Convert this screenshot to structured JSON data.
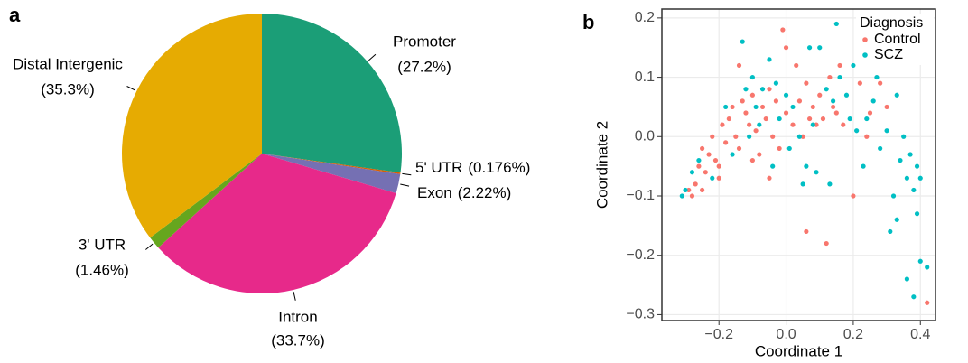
{
  "chart_data": [
    {
      "type": "pie",
      "label": "a",
      "categories": [
        "Promoter",
        "5' UTR",
        "Exon",
        "Intron",
        "3' UTR",
        "Distal Intergenic"
      ],
      "values": [
        27.2,
        0.176,
        2.22,
        33.7,
        1.46,
        35.3
      ],
      "value_labels": [
        "(27.2%)",
        "(0.176%)",
        "(2.22%)",
        "(33.7%)",
        "(1.46%)",
        "(35.3%)"
      ],
      "colors": [
        "#1B9E77",
        "#D95F02",
        "#7570B3",
        "#E7298A",
        "#66A61E",
        "#E6AB02"
      ]
    },
    {
      "type": "scatter",
      "label": "b",
      "x_label": "Coordinate 1",
      "y_label": "Coordinate 2",
      "legend_title": "Diagnosis",
      "legend": "top-right",
      "grid": true,
      "xlim": [
        -0.37,
        0.445
      ],
      "ylim": [
        -0.31,
        0.215
      ],
      "xticks": [
        {
          "value": -0.2,
          "label": "−0.2"
        },
        {
          "value": 0,
          "label": "0.0"
        },
        {
          "value": 0.2,
          "label": "0.2"
        },
        {
          "value": 0.4,
          "label": "0.4"
        }
      ],
      "yticks": [
        {
          "value": -0.3,
          "label": "−0.3"
        },
        {
          "value": -0.2,
          "label": "−0.2"
        },
        {
          "value": -0.1,
          "label": "−0.1"
        },
        {
          "value": 0,
          "label": "0.0"
        },
        {
          "value": 0.1,
          "label": "0.1"
        },
        {
          "value": 0.2,
          "label": "0.2"
        }
      ],
      "series": [
        {
          "name": "Control",
          "color": "#F8766D",
          "x": [
            -0.28,
            -0.29,
            -0.27,
            -0.25,
            -0.26,
            -0.24,
            -0.23,
            -0.25,
            -0.22,
            -0.21,
            -0.2,
            -0.19,
            -0.18,
            -0.17,
            -0.16,
            -0.15,
            -0.14,
            -0.13,
            -0.12,
            -0.11,
            -0.1,
            -0.09,
            -0.08,
            -0.07,
            -0.06,
            -0.05,
            -0.04,
            -0.03,
            -0.02,
            -0.01,
            0.0,
            0.02,
            0.03,
            0.04,
            0.05,
            0.06,
            0.07,
            0.08,
            0.09,
            0.1,
            0.11,
            0.12,
            0.13,
            0.14,
            0.15,
            0.16,
            0.17,
            0.2,
            0.22,
            0.24,
            0.25,
            0.28,
            0.3,
            0.42,
            0.06,
            -0.14,
            -0.1,
            -0.2,
            0.0,
            -0.05
          ],
          "y": [
            -0.1,
            -0.09,
            -0.08,
            -0.09,
            -0.05,
            -0.06,
            -0.03,
            -0.02,
            0.0,
            -0.04,
            -0.07,
            0.02,
            -0.01,
            0.03,
            0.05,
            0.0,
            -0.02,
            0.06,
            0.04,
            0.02,
            0.07,
            0.01,
            -0.03,
            0.05,
            0.03,
            0.08,
            0.0,
            0.06,
            -0.02,
            0.18,
            0.04,
            0.02,
            0.12,
            0.06,
            0.0,
            0.09,
            0.03,
            0.05,
            0.02,
            0.07,
            0.03,
            -0.18,
            0.1,
            0.05,
            0.04,
            0.12,
            0.02,
            -0.1,
            0.09,
            0.0,
            0.04,
            0.09,
            0.05,
            -0.28,
            -0.16,
            0.12,
            -0.04,
            -0.05,
            0.15,
            -0.07
          ]
        },
        {
          "name": "SCZ",
          "color": "#00BFC4",
          "x": [
            -0.31,
            -0.3,
            -0.26,
            -0.22,
            -0.18,
            -0.16,
            -0.13,
            -0.12,
            -0.1,
            -0.09,
            -0.08,
            -0.07,
            -0.05,
            -0.03,
            -0.02,
            0.0,
            0.01,
            0.02,
            0.04,
            0.05,
            0.06,
            0.07,
            0.08,
            0.09,
            0.1,
            0.12,
            0.14,
            0.15,
            0.16,
            0.18,
            0.19,
            0.2,
            0.21,
            0.22,
            0.23,
            0.24,
            0.26,
            0.27,
            0.28,
            0.3,
            0.31,
            0.32,
            0.33,
            0.34,
            0.35,
            0.36,
            0.37,
            0.38,
            0.39,
            0.4,
            0.36,
            0.39,
            0.38,
            0.4,
            0.42,
            0.33,
            -0.04,
            -0.11,
            0.13,
            -0.28
          ],
          "y": [
            -0.1,
            -0.09,
            -0.04,
            -0.07,
            0.05,
            -0.03,
            0.16,
            0.08,
            0.1,
            0.05,
            0.02,
            0.08,
            0.13,
            0.09,
            0.03,
            0.07,
            -0.02,
            0.05,
            0.0,
            -0.08,
            -0.05,
            0.15,
            0.02,
            -0.06,
            0.15,
            0.08,
            0.06,
            0.19,
            0.1,
            0.07,
            0.03,
            0.12,
            0.01,
            0.18,
            -0.05,
            0.03,
            0.06,
            0.1,
            -0.02,
            0.01,
            -0.16,
            -0.1,
            0.07,
            -0.04,
            0.0,
            -0.07,
            -0.03,
            -0.09,
            -0.05,
            -0.07,
            -0.24,
            -0.13,
            -0.27,
            -0.21,
            -0.22,
            -0.14,
            -0.05,
            0.0,
            -0.08,
            -0.06
          ]
        }
      ]
    }
  ]
}
